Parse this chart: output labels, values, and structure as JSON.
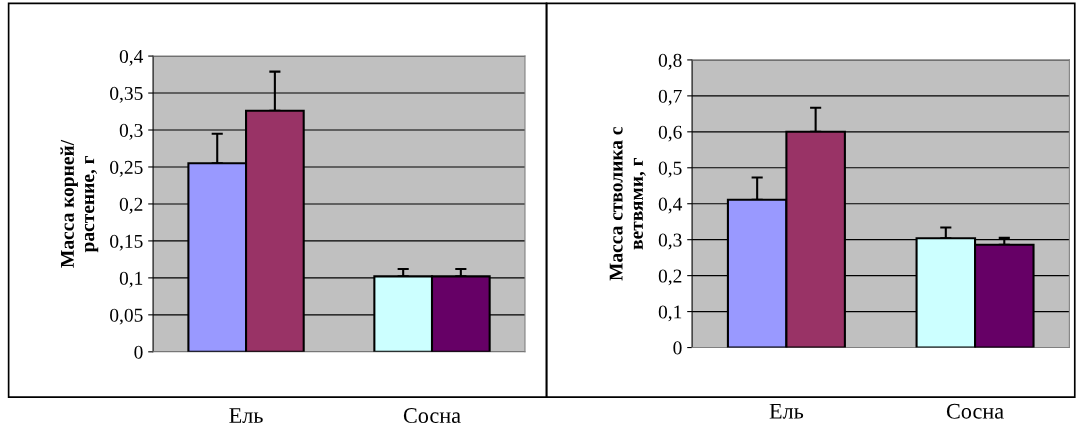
{
  "chart_data": [
    {
      "type": "bar",
      "ylabel": "Масса корней/\nрастение, г",
      "categories": [
        "Ель",
        "Сосна"
      ],
      "series": [
        {
          "colors": [
            "#9999ff",
            "#ccffff"
          ],
          "values": [
            0.255,
            0.102
          ],
          "errors": [
            [
              0.255,
              0.295
            ],
            [
              0.102,
              0.112
            ]
          ]
        },
        {
          "colors": [
            "#993366",
            "#660066"
          ],
          "values": [
            0.326,
            0.102
          ],
          "errors": [
            [
              0.326,
              0.379
            ],
            [
              0.102,
              0.112
            ]
          ]
        }
      ],
      "ylim": [
        0,
        0.4
      ],
      "yticks": [
        0,
        {
          "value": 0.05,
          "label": "0,05"
        },
        {
          "value": 0.1,
          "label": "0,1"
        },
        {
          "value": 0.15,
          "label": "0,15"
        },
        {
          "value": 0.2,
          "label": "0,2"
        },
        {
          "value": 0.25,
          "label": "0,25"
        },
        {
          "value": 0.3,
          "label": "0,3"
        },
        {
          "value": 0.35,
          "label": "0,35"
        },
        {
          "value": 0.4,
          "label": "0,4"
        }
      ],
      "grid": "y",
      "legend": false
    },
    {
      "type": "bar",
      "ylabel": "Масса стволика с\nветвями, г",
      "categories": [
        "Ель",
        "Сосна"
      ],
      "series": [
        {
          "colors": [
            "#9999ff",
            "#ccffff"
          ],
          "values": [
            0.411,
            0.304
          ],
          "errors": [
            [
              0.411,
              0.473
            ],
            [
              0.304,
              0.334
            ]
          ]
        },
        {
          "colors": [
            "#993366",
            "#660066"
          ],
          "values": [
            0.6,
            0.286
          ],
          "errors": [
            [
              0.6,
              0.667
            ],
            [
              0.286,
              0.305
            ]
          ]
        }
      ],
      "ylim": [
        0,
        0.8
      ],
      "yticks": [
        0,
        {
          "value": 0.1,
          "label": "0,1"
        },
        {
          "value": 0.2,
          "label": "0,2"
        },
        {
          "value": 0.3,
          "label": "0,3"
        },
        {
          "value": 0.4,
          "label": "0,4"
        },
        {
          "value": 0.5,
          "label": "0,5"
        },
        {
          "value": 0.6,
          "label": "0,6"
        },
        {
          "value": 0.7,
          "label": "0,7"
        },
        {
          "value": 0.8,
          "label": "0,8"
        }
      ],
      "grid": "y",
      "legend": false
    }
  ]
}
